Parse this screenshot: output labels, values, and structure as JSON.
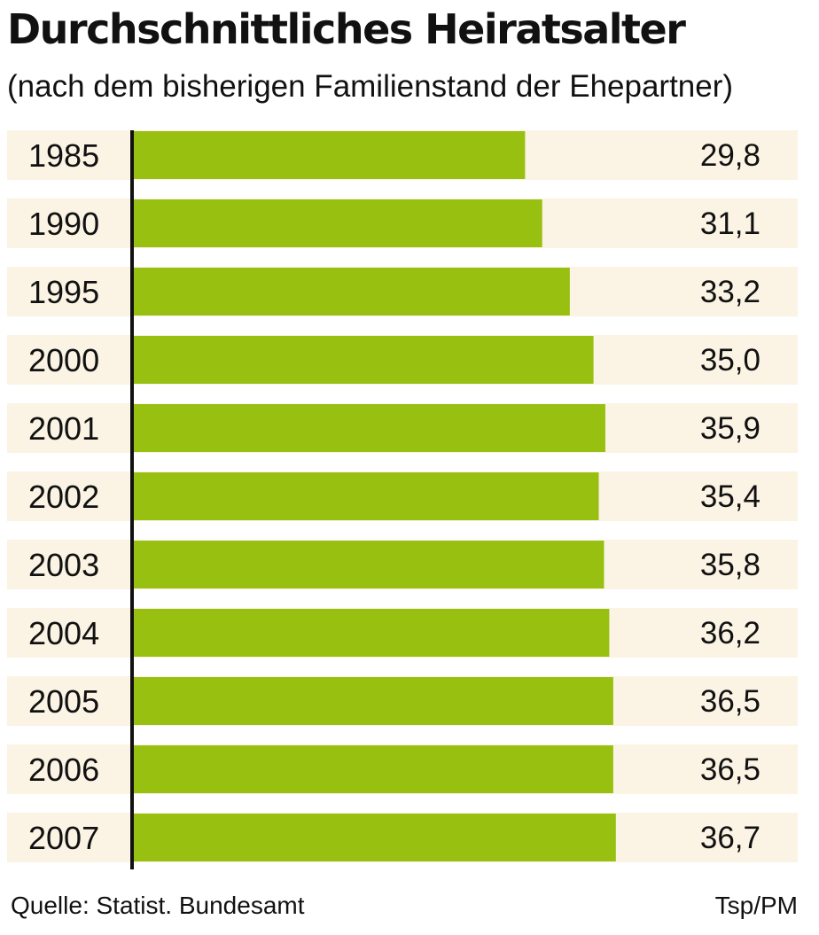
{
  "chart_data": {
    "type": "bar",
    "orientation": "horizontal",
    "title": "Durchschnittliches Heiratsalter",
    "subtitle": "(nach dem bisherigen Familienstand der Ehepartner)",
    "categories": [
      "1985",
      "1990",
      "1995",
      "2000",
      "2001",
      "2002",
      "2003",
      "2004",
      "2005",
      "2006",
      "2007"
    ],
    "values": [
      29.8,
      31.1,
      33.2,
      35.0,
      35.9,
      35.4,
      35.8,
      36.2,
      36.5,
      36.5,
      36.7
    ],
    "value_labels": [
      "29,8",
      "31,1",
      "33,2",
      "35,0",
      "35,9",
      "35,4",
      "35,8",
      "36,2",
      "36,5",
      "36,5",
      "36,7"
    ],
    "xlim": [
      0,
      48.5
    ],
    "grid": false,
    "legend": "none",
    "colors": {
      "bar": "#98c010",
      "row_background": "#fbf3e4",
      "axis": "#111111",
      "text": "#111111"
    }
  },
  "footer": {
    "source": "Quelle: Statist. Bundesamt",
    "credit": "Tsp/PM"
  }
}
